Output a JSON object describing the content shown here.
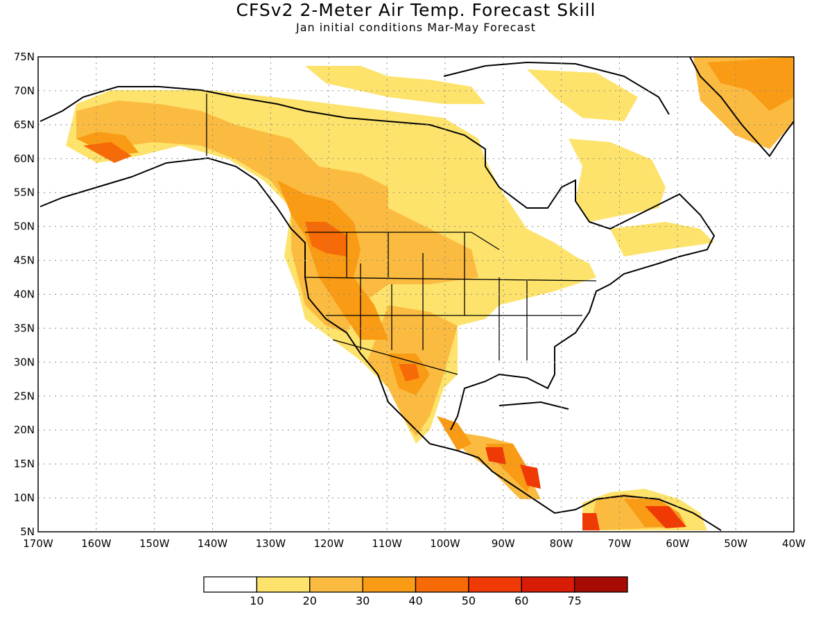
{
  "header": {
    "title": "CFSv2 2-Meter Air Temp. Forecast Skill",
    "subtitle": "Jan initial conditions  Mar-May Forecast"
  },
  "axes": {
    "lon_labels": [
      "170W",
      "160W",
      "150W",
      "140W",
      "130W",
      "120W",
      "110W",
      "100W",
      "90W",
      "80W",
      "70W",
      "60W",
      "50W",
      "40W"
    ],
    "lat_labels": [
      "75N",
      "70N",
      "65N",
      "60N",
      "55N",
      "50N",
      "45N",
      "40N",
      "35N",
      "30N",
      "25N",
      "20N",
      "15N",
      "10N",
      "5N"
    ],
    "lon_range": [
      -170,
      -40
    ],
    "lat_range": [
      5,
      75
    ],
    "grid": "dotted"
  },
  "colorbar": {
    "colors": [
      "#ffffff",
      "#fde36b",
      "#fbbb40",
      "#f99b14",
      "#f66a07",
      "#f03a06",
      "#d81c06",
      "#a70c04"
    ],
    "labels": [
      "10",
      "20",
      "30",
      "40",
      "50",
      "60",
      "75"
    ]
  },
  "map_features": {
    "land_color": "#ffffff",
    "coastline_color": "#000000"
  }
}
